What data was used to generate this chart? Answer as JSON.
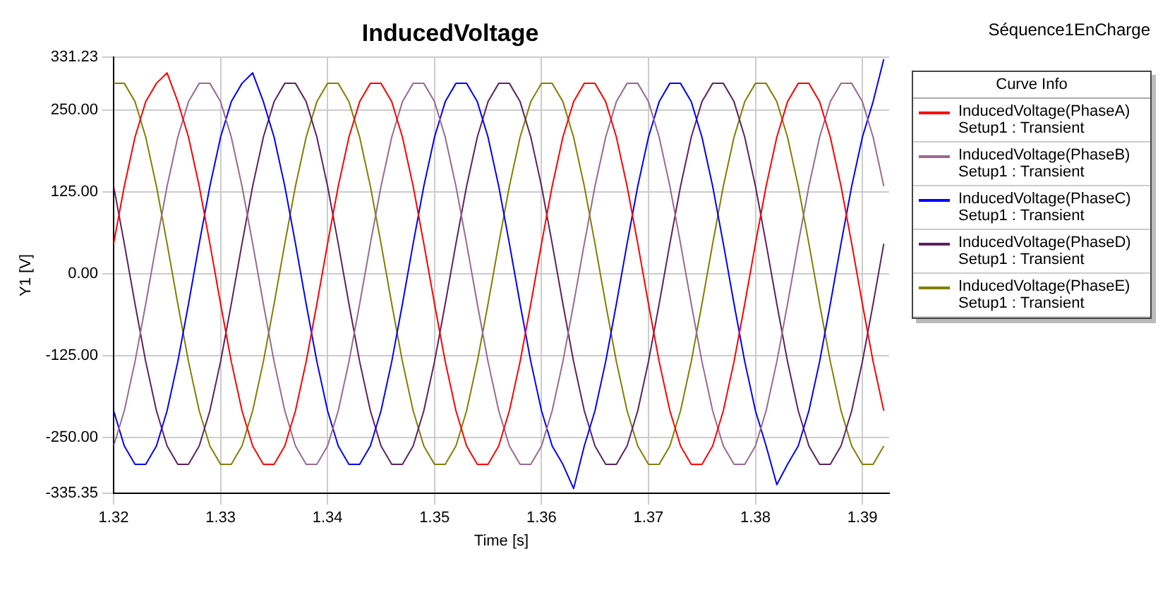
{
  "chart_data": {
    "type": "line",
    "title": "InducedVoltage",
    "subtitle": "Séquence1EnCharge",
    "xlabel": "Time [s]",
    "ylabel": "Y1 [V]",
    "legend_title": "Curve Info",
    "legend": "right",
    "grid": true,
    "marker": "none",
    "xlim": [
      1.32,
      1.3925
    ],
    "xticks": [
      1.32,
      1.33,
      1.34,
      1.35,
      1.36,
      1.37,
      1.38,
      1.39
    ],
    "ylim": [
      -335.35,
      331.23
    ],
    "yticks": [
      {
        "value": -335.35,
        "label": "-335.35"
      },
      {
        "value": -250,
        "label": "-250.00"
      },
      {
        "value": -125,
        "label": "-125.00"
      },
      {
        "value": 0,
        "label": "0.00"
      },
      {
        "value": 125,
        "label": "125.00"
      },
      {
        "value": 250,
        "label": "250.00"
      },
      {
        "value": 331.23,
        "label": "331.23"
      }
    ],
    "x": [
      1.32,
      1.321,
      1.322,
      1.323,
      1.324,
      1.325,
      1.326,
      1.327,
      1.328,
      1.329,
      1.33,
      1.331,
      1.332,
      1.333,
      1.334,
      1.335,
      1.336,
      1.337,
      1.338,
      1.339,
      1.34,
      1.341,
      1.342,
      1.343,
      1.344,
      1.345,
      1.346,
      1.347,
      1.348,
      1.349,
      1.35,
      1.351,
      1.352,
      1.353,
      1.354,
      1.355,
      1.356,
      1.357,
      1.358,
      1.359,
      1.36,
      1.361,
      1.362,
      1.363,
      1.364,
      1.365,
      1.366,
      1.367,
      1.368,
      1.369,
      1.37,
      1.371,
      1.372,
      1.373,
      1.374,
      1.375,
      1.376,
      1.377,
      1.378,
      1.379,
      1.38,
      1.381,
      1.382,
      1.383,
      1.384,
      1.385,
      1.386,
      1.387,
      1.388,
      1.389,
      1.39,
      1.391,
      1.392
    ],
    "series": [
      {
        "name": "InducedVoltage(PhaseA)\nSetup1 : Transient",
        "color": "#ff0000",
        "values": [
          46,
          134,
          209,
          263,
          291,
          307,
          263,
          209,
          134,
          46,
          -46,
          -134,
          -209,
          -263,
          -291,
          -291,
          -263,
          -209,
          -134,
          -46,
          46,
          134,
          209,
          263,
          291,
          291,
          263,
          209,
          134,
          46,
          -46,
          -134,
          -209,
          -263,
          -291,
          -291,
          -263,
          -209,
          -134,
          -46,
          46,
          134,
          209,
          263,
          291,
          291,
          263,
          209,
          134,
          46,
          -46,
          -134,
          -209,
          -263,
          -291,
          -291,
          -263,
          -209,
          -134,
          -46,
          46,
          134,
          209,
          263,
          291,
          291,
          263,
          209,
          134,
          46,
          -46,
          -134,
          -209
        ]
      },
      {
        "name": "InducedVoltage(PhaseB)\nSetup1 : Transient",
        "color": "#9a6a8c",
        "values": [
          -263,
          -209,
          -134,
          -46,
          46,
          134,
          209,
          263,
          291,
          291,
          263,
          209,
          134,
          46,
          -46,
          -134,
          -209,
          -263,
          -291,
          -291,
          -263,
          -209,
          -134,
          -46,
          46,
          134,
          209,
          263,
          291,
          291,
          263,
          209,
          134,
          46,
          -46,
          -134,
          -209,
          -263,
          -291,
          -291,
          -263,
          -209,
          -134,
          -46,
          46,
          134,
          209,
          263,
          291,
          291,
          263,
          209,
          134,
          46,
          -46,
          -134,
          -209,
          -263,
          -291,
          -291,
          -263,
          -209,
          -134,
          -46,
          46,
          134,
          209,
          263,
          291,
          291,
          263,
          209,
          134
        ]
      },
      {
        "name": "InducedVoltage(PhaseC)\nSetup1 : Transient",
        "color": "#0000ff",
        "values": [
          -209,
          -263,
          -291,
          -291,
          -263,
          -209,
          -134,
          -46,
          46,
          134,
          209,
          263,
          291,
          307,
          263,
          209,
          134,
          46,
          -46,
          -134,
          -209,
          -263,
          -291,
          -291,
          -263,
          -209,
          -134,
          -46,
          46,
          134,
          209,
          263,
          291,
          291,
          263,
          209,
          134,
          46,
          -46,
          -134,
          -209,
          -263,
          -291,
          -328,
          -263,
          -209,
          -134,
          -46,
          46,
          134,
          209,
          263,
          291,
          291,
          263,
          209,
          134,
          46,
          -46,
          -134,
          -209,
          -263,
          -322,
          -291,
          -263,
          -209,
          -134,
          -46,
          46,
          134,
          209,
          263,
          328
        ]
      },
      {
        "name": "InducedVoltage(PhaseD)\nSetup1 : Transient",
        "color": "#602060",
        "values": [
          134,
          46,
          -46,
          -134,
          -209,
          -263,
          -291,
          -291,
          -263,
          -209,
          -134,
          -46,
          46,
          134,
          209,
          263,
          291,
          291,
          263,
          209,
          134,
          46,
          -46,
          -134,
          -209,
          -263,
          -291,
          -291,
          -263,
          -209,
          -134,
          -46,
          46,
          134,
          209,
          263,
          291,
          291,
          263,
          209,
          134,
          46,
          -46,
          -134,
          -209,
          -263,
          -291,
          -291,
          -263,
          -209,
          -134,
          -46,
          46,
          134,
          209,
          263,
          291,
          291,
          263,
          209,
          134,
          46,
          -46,
          -134,
          -209,
          -263,
          -291,
          -291,
          -263,
          -209,
          -134,
          -46,
          46
        ]
      },
      {
        "name": "InducedVoltage(PhaseE)\nSetup1 : Transient",
        "color": "#808000",
        "values": [
          291,
          291,
          263,
          209,
          134,
          46,
          -46,
          -134,
          -209,
          -263,
          -291,
          -291,
          -263,
          -209,
          -134,
          -46,
          46,
          134,
          209,
          263,
          291,
          291,
          263,
          209,
          134,
          46,
          -46,
          -134,
          -209,
          -263,
          -291,
          -291,
          -263,
          -209,
          -134,
          -46,
          46,
          134,
          209,
          263,
          291,
          291,
          263,
          209,
          134,
          46,
          -46,
          -134,
          -209,
          -263,
          -291,
          -291,
          -263,
          -209,
          -134,
          -46,
          46,
          134,
          209,
          263,
          291,
          291,
          263,
          209,
          134,
          46,
          -46,
          -134,
          -209,
          -263,
          -291,
          -291,
          -263
        ]
      }
    ]
  }
}
